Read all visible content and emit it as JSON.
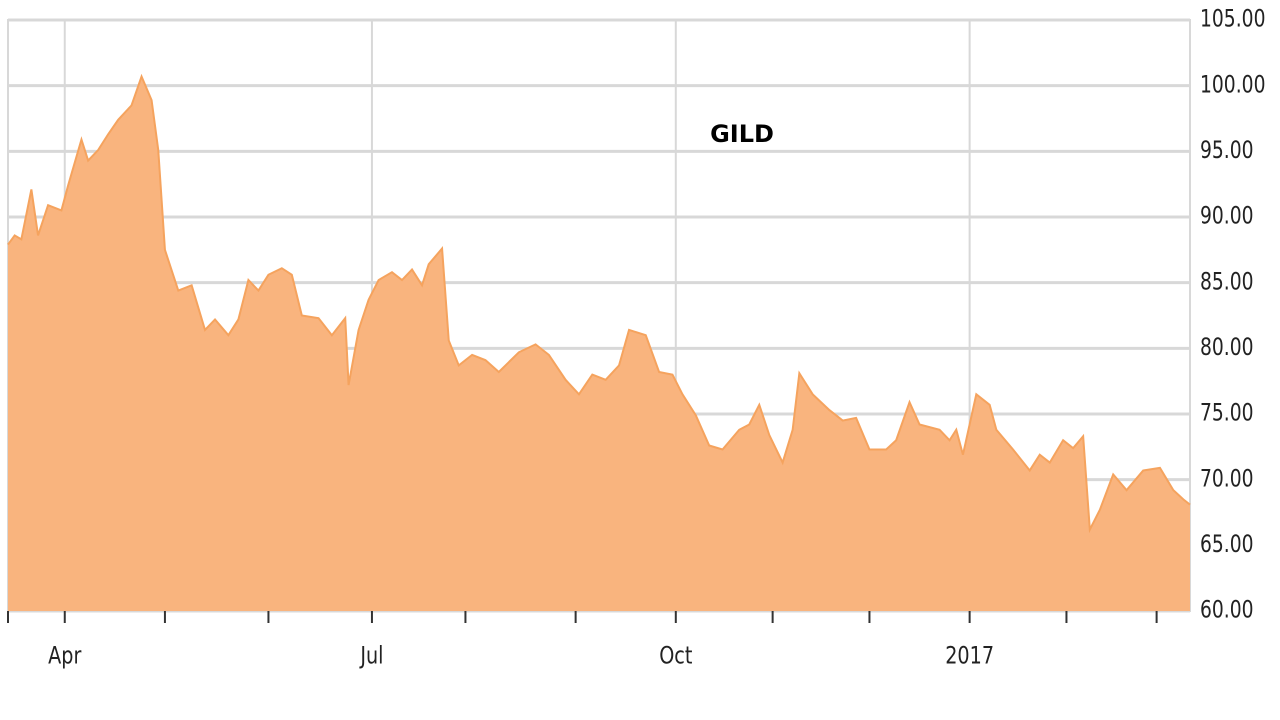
{
  "chart_data": {
    "type": "area",
    "title": "GILD",
    "x": [
      0,
      2,
      4,
      7,
      9,
      12,
      16,
      18,
      22,
      24,
      27,
      30,
      33,
      37,
      40,
      43,
      45,
      47,
      51,
      55,
      59,
      62,
      66,
      69,
      72,
      75,
      78,
      82,
      85,
      88,
      93,
      97,
      101,
      102,
      105,
      108,
      111,
      115,
      118,
      121,
      124,
      126,
      130,
      132,
      135,
      139,
      143,
      147,
      153,
      158,
      162,
      167,
      171,
      175,
      179,
      183,
      186,
      191,
      195,
      199,
      202,
      206,
      210,
      214,
      219,
      222,
      225,
      228,
      232,
      235,
      237,
      241,
      246,
      250,
      254,
      258,
      263,
      266,
      270,
      273,
      279,
      282,
      284,
      286,
      290,
      294,
      296,
      301,
      306,
      309,
      312,
      316,
      319,
      322,
      324,
      327,
      331,
      335,
      340,
      345,
      349,
      352,
      354
    ],
    "series": [
      {
        "name": "GILD",
        "color": "#f5a35e",
        "fill": "#f9b47e",
        "values": [
          87.9,
          88.6,
          88.3,
          92.1,
          88.6,
          90.9,
          90.5,
          92.4,
          95.9,
          94.3,
          95.1,
          96.3,
          97.4,
          98.5,
          100.7,
          98.9,
          95.1,
          87.5,
          84.4,
          84.8,
          81.4,
          82.2,
          81.0,
          82.2,
          85.2,
          84.4,
          85.6,
          86.1,
          85.6,
          82.5,
          82.3,
          81.0,
          82.3,
          77.2,
          81.4,
          83.7,
          85.2,
          85.8,
          85.2,
          86.0,
          84.8,
          86.4,
          87.6,
          80.6,
          78.7,
          79.5,
          79.1,
          78.2,
          79.7,
          80.3,
          79.5,
          77.6,
          76.5,
          78.0,
          77.6,
          78.7,
          81.4,
          81.0,
          78.2,
          78.0,
          76.5,
          74.9,
          72.6,
          72.3,
          73.8,
          74.2,
          75.7,
          73.4,
          71.3,
          73.8,
          78.1,
          76.5,
          75.3,
          74.5,
          74.7,
          72.3,
          72.3,
          73.0,
          75.9,
          74.2,
          73.8,
          73.0,
          73.8,
          71.9,
          76.5,
          75.7,
          73.8,
          72.3,
          70.7,
          71.9,
          71.3,
          73.0,
          72.4,
          73.3,
          66.2,
          67.7,
          70.4,
          69.2,
          70.7,
          70.9,
          69.2,
          68.5,
          68.1
        ]
      }
    ],
    "xlim": [
      0,
      354
    ],
    "xticks": [
      {
        "value": 17,
        "label": "Apr"
      },
      {
        "value": 109,
        "label": "Jul"
      },
      {
        "value": 200,
        "label": "Oct"
      },
      {
        "value": 288,
        "label": "2017"
      }
    ],
    "xminor": [
      0,
      17,
      47,
      78,
      109,
      137,
      170,
      200,
      229,
      258,
      288,
      317,
      344
    ],
    "ylim": [
      60,
      105
    ],
    "yticks": [
      {
        "value": 60,
        "label": "60.00"
      },
      {
        "value": 65,
        "label": "65.00"
      },
      {
        "value": 70,
        "label": "70.00"
      },
      {
        "value": 75,
        "label": "75.00"
      },
      {
        "value": 80,
        "label": "80.00"
      },
      {
        "value": 85,
        "label": "85.00"
      },
      {
        "value": 90,
        "label": "90.00"
      },
      {
        "value": 95,
        "label": "95.00"
      },
      {
        "value": 100,
        "label": "100.00"
      },
      {
        "value": 105,
        "label": "105.00"
      }
    ],
    "grid": true
  }
}
